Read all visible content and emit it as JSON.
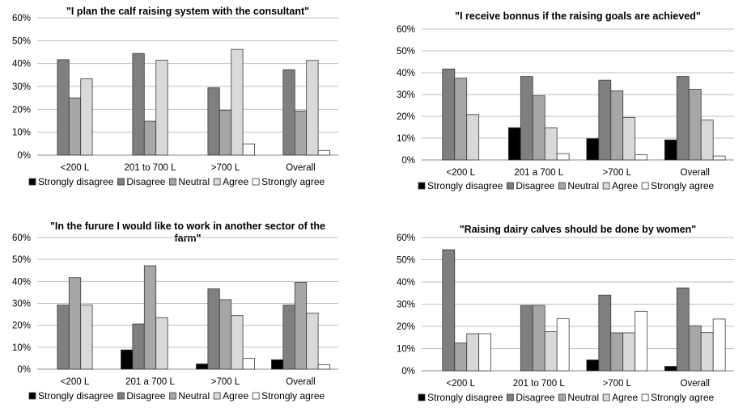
{
  "series_colors": [
    "#000000",
    "#7f7f7f",
    "#a6a6a6",
    "#d9d9d9",
    "#ffffff"
  ],
  "chart_data": [
    {
      "type": "bar",
      "title_lines": [
        "\"I plan the calf raising system with the consultant\""
      ],
      "categories": [
        "<200 L",
        "201 to 700 L",
        ">700 L",
        "Overall"
      ],
      "yticks": [
        "0%",
        "10%",
        "20%",
        "30%",
        "40%",
        "50%",
        "60%"
      ],
      "ylim": [
        0,
        60
      ],
      "legend_position": "bottom",
      "series": [
        {
          "name": "Strongly disagree",
          "values": [
            0,
            0,
            0,
            0
          ]
        },
        {
          "name": "Disagree",
          "values": [
            41.7,
            44.4,
            29.4,
            37.3
          ]
        },
        {
          "name": "Neutral",
          "values": [
            25,
            14.8,
            19.6,
            19.3
          ]
        },
        {
          "name": "Agree",
          "values": [
            33.3,
            41.5,
            46.2,
            41.4
          ]
        },
        {
          "name": "Strongly agree",
          "values": [
            0,
            0,
            4.9,
            2
          ]
        }
      ]
    },
    {
      "type": "bar",
      "title_lines": [
        "\"I receive bonnus if the raising goals are achieved\""
      ],
      "categories": [
        "<200 L",
        "201 a 700 L",
        ">700 L",
        "Overall"
      ],
      "yticks": [
        "0%",
        "10%",
        "20%",
        "30%",
        "40%",
        "50%",
        "60%"
      ],
      "ylim": [
        0,
        60
      ],
      "legend_position": "bottom",
      "series": [
        {
          "name": "Strongly disagree",
          "values": [
            0,
            14.8,
            9.8,
            9.2
          ]
        },
        {
          "name": "Disagree",
          "values": [
            41.7,
            38.3,
            36.6,
            38.3
          ]
        },
        {
          "name": "Neutral",
          "values": [
            37.5,
            29.4,
            31.7,
            32.4
          ]
        },
        {
          "name": "Agree",
          "values": [
            20.8,
            14.8,
            19.5,
            18.3
          ]
        },
        {
          "name": "Strongly agree",
          "values": [
            0,
            2.9,
            2.4,
            1.8
          ]
        }
      ]
    },
    {
      "type": "bar",
      "title_lines": [
        "\"In the furure I would like to work in another sector of the",
        "farm\""
      ],
      "categories": [
        "<200 L",
        "201 a 700 L",
        ">700 L",
        "Overall"
      ],
      "yticks": [
        "0%",
        "10%",
        "20%",
        "30%",
        "40%",
        "50%",
        "60%"
      ],
      "ylim": [
        0,
        60
      ],
      "legend_position": "bottom",
      "series": [
        {
          "name": "Strongly disagree",
          "values": [
            0,
            8.8,
            2.4,
            4.3
          ]
        },
        {
          "name": "Disagree",
          "values": [
            29.2,
            20.6,
            36.6,
            29.2
          ]
        },
        {
          "name": "Neutral",
          "values": [
            41.7,
            47.1,
            31.7,
            39.6
          ]
        },
        {
          "name": "Agree",
          "values": [
            29.2,
            23.5,
            24.4,
            25.5
          ]
        },
        {
          "name": "Strongly agree",
          "values": [
            0,
            0,
            4.9,
            2
          ]
        }
      ]
    },
    {
      "type": "bar",
      "title_lines": [
        "\"Raising dairy calves should be done by women\""
      ],
      "categories": [
        "<200 L",
        "201 to 700 L",
        ">700 L",
        "Overall"
      ],
      "yticks": [
        "0%",
        "10%",
        "20%",
        "30%",
        "40%",
        "50%",
        "60%"
      ],
      "ylim": [
        0,
        60
      ],
      "legend_position": "bottom",
      "series": [
        {
          "name": "Strongly disagree",
          "values": [
            0,
            0,
            4.9,
            2
          ]
        },
        {
          "name": "Disagree",
          "values": [
            54.5,
            29.4,
            34.1,
            37.3
          ]
        },
        {
          "name": "Neutral",
          "values": [
            12.5,
            29.4,
            17.1,
            20.3
          ]
        },
        {
          "name": "Agree",
          "values": [
            16.7,
            17.6,
            17.1,
            17.2
          ]
        },
        {
          "name": "Strongly agree",
          "values": [
            16.7,
            23.5,
            26.8,
            23.3
          ]
        }
      ]
    }
  ]
}
